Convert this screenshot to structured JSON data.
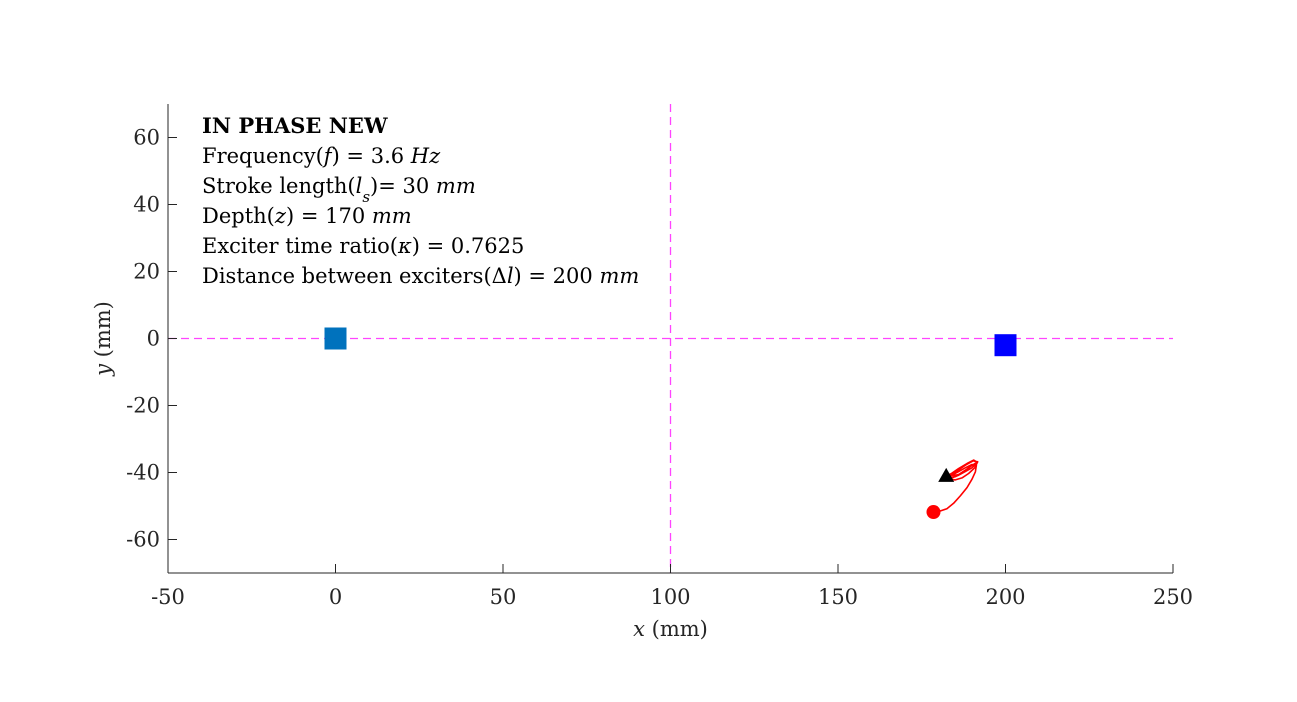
{
  "chart_data": {
    "type": "scatter",
    "title": "",
    "xlabel": {
      "var": "x",
      "unit": "(mm)"
    },
    "ylabel": {
      "var": "y",
      "unit": "(mm)"
    },
    "xlim": [
      -50,
      250
    ],
    "ylim": [
      -70,
      70
    ],
    "x_ticks": [
      -50,
      0,
      50,
      100,
      150,
      200,
      250
    ],
    "x_tick_labels": [
      "-50",
      "0",
      "50",
      "100",
      "150",
      "200",
      "250"
    ],
    "y_ticks": [
      60,
      40,
      20,
      0,
      -20,
      -40,
      -60
    ],
    "y_tick_labels": [
      "60",
      "40",
      "20",
      "0",
      "-20",
      "-40",
      "-60"
    ],
    "grid": false,
    "reference_lines": [
      {
        "orientation": "vertical",
        "x": 100,
        "color": "#ff44ff",
        "style": "dashed"
      },
      {
        "orientation": "horizontal",
        "y": 0,
        "color": "#ff44ff",
        "style": "dashed"
      }
    ],
    "exciters": [
      {
        "x": 0,
        "y": 0,
        "marker": "square",
        "color": "#0072bd"
      },
      {
        "x": 200,
        "y": -2,
        "marker": "square",
        "color": "#0000ff"
      }
    ],
    "trajectory": {
      "color": "#ff0000",
      "points": [
        [
          178.5,
          -51.8
        ],
        [
          180.5,
          -51.5
        ],
        [
          182.5,
          -50.8
        ],
        [
          184.5,
          -49.2
        ],
        [
          186.5,
          -47.0
        ],
        [
          188.5,
          -44.5
        ],
        [
          190.0,
          -42.0
        ],
        [
          191.0,
          -39.8
        ],
        [
          191.3,
          -37.8
        ],
        [
          190.0,
          -37.6
        ],
        [
          188.0,
          -38.6
        ],
        [
          185.5,
          -40.0
        ],
        [
          183.5,
          -41.2
        ],
        [
          182.0,
          -41.8
        ],
        [
          184.0,
          -41.6
        ],
        [
          186.0,
          -40.8
        ],
        [
          188.0,
          -39.7
        ],
        [
          190.0,
          -38.6
        ],
        [
          191.6,
          -37.0
        ],
        [
          190.5,
          -36.3
        ],
        [
          188.5,
          -37.3
        ],
        [
          186.0,
          -38.8
        ],
        [
          184.0,
          -40.2
        ],
        [
          182.5,
          -41.0
        ],
        [
          181.5,
          -41.6
        ],
        [
          183.0,
          -41.9
        ],
        [
          185.0,
          -42.2
        ],
        [
          187.0,
          -41.6
        ],
        [
          189.0,
          -40.3
        ],
        [
          190.8,
          -38.6
        ],
        [
          191.7,
          -36.8
        ],
        [
          190.4,
          -36.5
        ],
        [
          188.2,
          -37.7
        ],
        [
          186.0,
          -39.2
        ],
        [
          184.0,
          -40.5
        ],
        [
          182.2,
          -41.2
        ],
        [
          183.2,
          -41.8
        ],
        [
          185.2,
          -41.2
        ],
        [
          187.3,
          -39.9
        ],
        [
          189.3,
          -38.4
        ],
        [
          191.0,
          -37.2
        ],
        [
          190.0,
          -37.9
        ],
        [
          188.0,
          -39.3
        ],
        [
          186.0,
          -40.6
        ],
        [
          184.0,
          -41.0
        ],
        [
          182.3,
          -41.0
        ]
      ]
    },
    "start_marker": {
      "x": 178.5,
      "y": -51.8,
      "marker": "circle",
      "color": "#ff0000"
    },
    "end_marker": {
      "x": 182.3,
      "y": -41.0,
      "marker": "triangle",
      "color": "#000000"
    },
    "annotations": [
      {
        "style": "bold",
        "parts": [
          {
            "t": "IN PHASE NEW"
          }
        ]
      },
      {
        "parts": [
          {
            "t": "Frequency("
          },
          {
            "t": "f",
            "it": true
          },
          {
            "t": ") = 3.6 "
          },
          {
            "t": "Hz",
            "it": true
          }
        ]
      },
      {
        "parts": [
          {
            "t": "Stroke length("
          },
          {
            "t": "l",
            "it": true
          },
          {
            "t": "s",
            "it": true,
            "sub": true
          },
          {
            "t": ")= 30 "
          },
          {
            "t": "mm",
            "it": true
          }
        ]
      },
      {
        "parts": [
          {
            "t": "Depth("
          },
          {
            "t": "z",
            "it": true
          },
          {
            "t": ") = 170 "
          },
          {
            "t": "mm",
            "it": true
          }
        ]
      },
      {
        "parts": [
          {
            "t": "Exciter time ratio("
          },
          {
            "t": "κ",
            "it": true
          },
          {
            "t": ") = 0.7625"
          }
        ]
      },
      {
        "parts": [
          {
            "t": "Distance between exciters(Δ"
          },
          {
            "t": "l",
            "it": true
          },
          {
            "t": ") = 200 "
          },
          {
            "t": "mm",
            "it": true
          }
        ]
      }
    ]
  }
}
